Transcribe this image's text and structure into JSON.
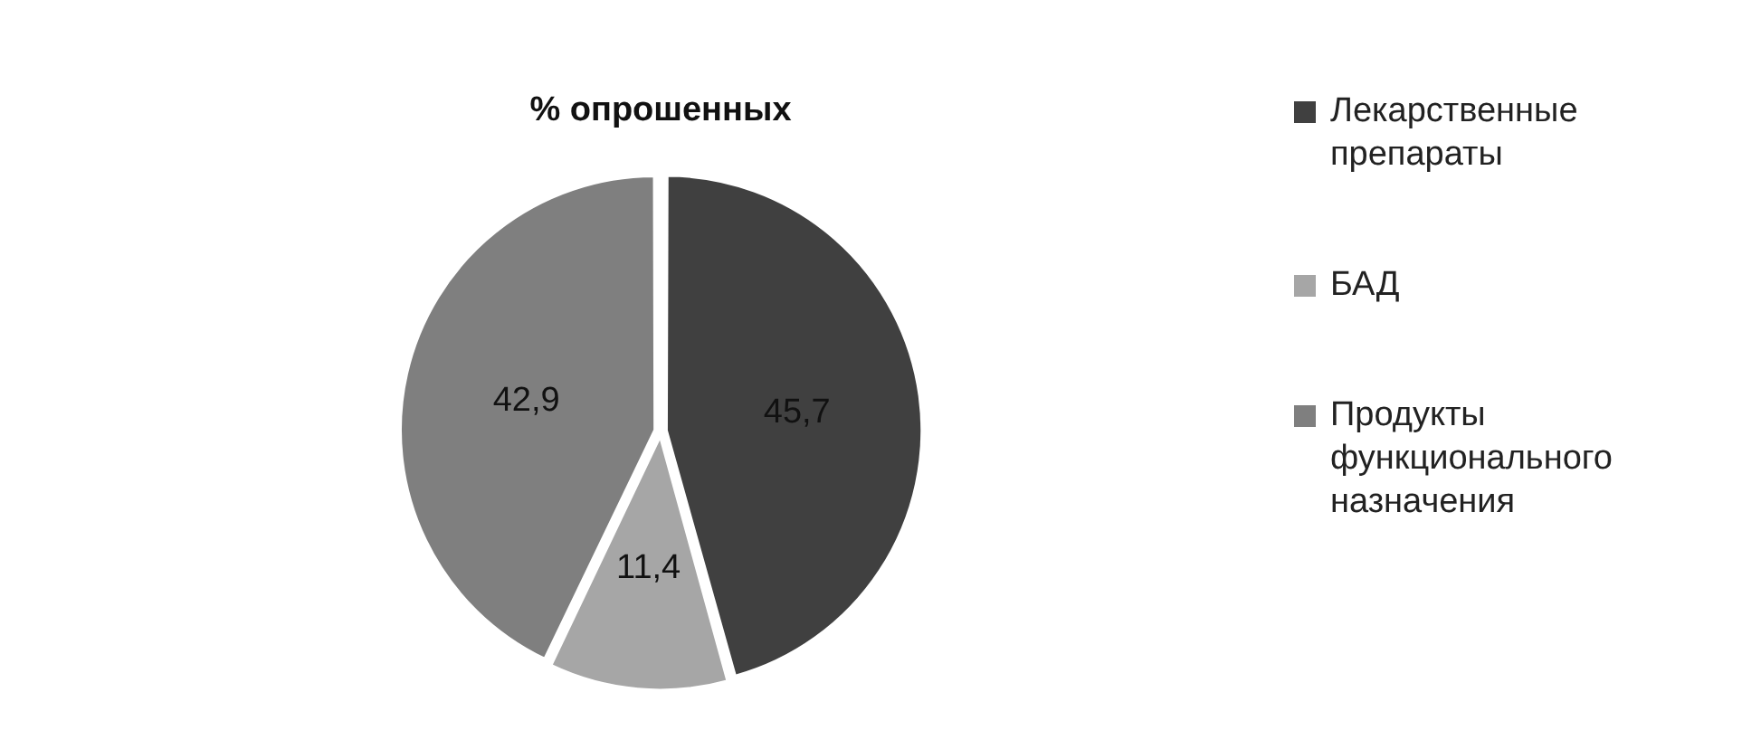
{
  "chart_data": {
    "type": "pie",
    "title": "% опрошенных",
    "categories": [
      "Лекарственные препараты",
      "БАД",
      "Продукты функционального назначения"
    ],
    "values": [
      45.7,
      11.4,
      42.9
    ],
    "colors": [
      "#404040",
      "#a6a6a6",
      "#7f7f7f"
    ],
    "value_labels": [
      "45,7",
      "11,4",
      "42,9"
    ],
    "legend": "right"
  }
}
